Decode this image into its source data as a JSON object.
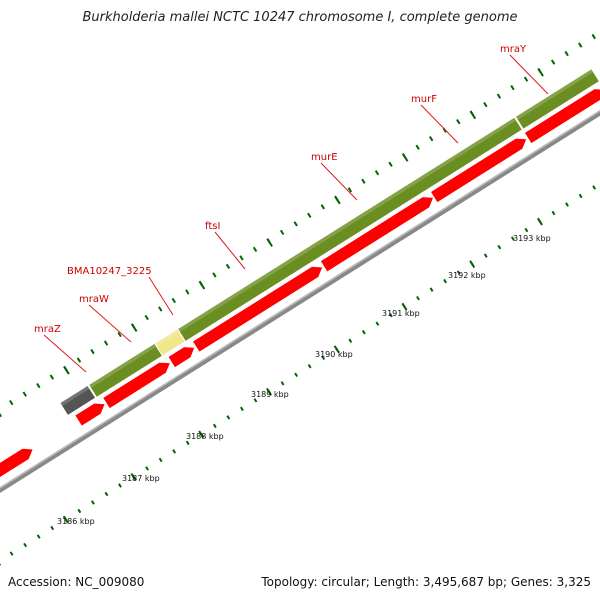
{
  "title": "Burkholderia mallei NCTC 10247 chromosome I, complete genome",
  "footer": {
    "accession": "Accession: NC_009080",
    "stats": "Topology: circular; Length: 3,495,687 bp; Genes: 3,325"
  },
  "colors": {
    "gene_label": "#cc0000",
    "leader_line": "#e31a1c",
    "forward_cds": "#ff0000",
    "reverse_cds": "#0000ff",
    "feature_olive": "#6b8e23",
    "feature_grey": "#555555",
    "feature_pale_yellow": "#f0e68c",
    "backbone": "#888888",
    "tick_green": "#006400"
  },
  "gene_labels": [
    "mraZ",
    "mraW",
    "BMA10247_3225",
    "ftsI",
    "murE",
    "murF",
    "mraY"
  ],
  "ruler_labels": [
    "3186 kbp",
    "3187 kbp",
    "3188 kbp",
    "3189 kbp",
    "3190 kbp",
    "3191 kbp",
    "3192 kbp",
    "3193 kbp"
  ]
}
